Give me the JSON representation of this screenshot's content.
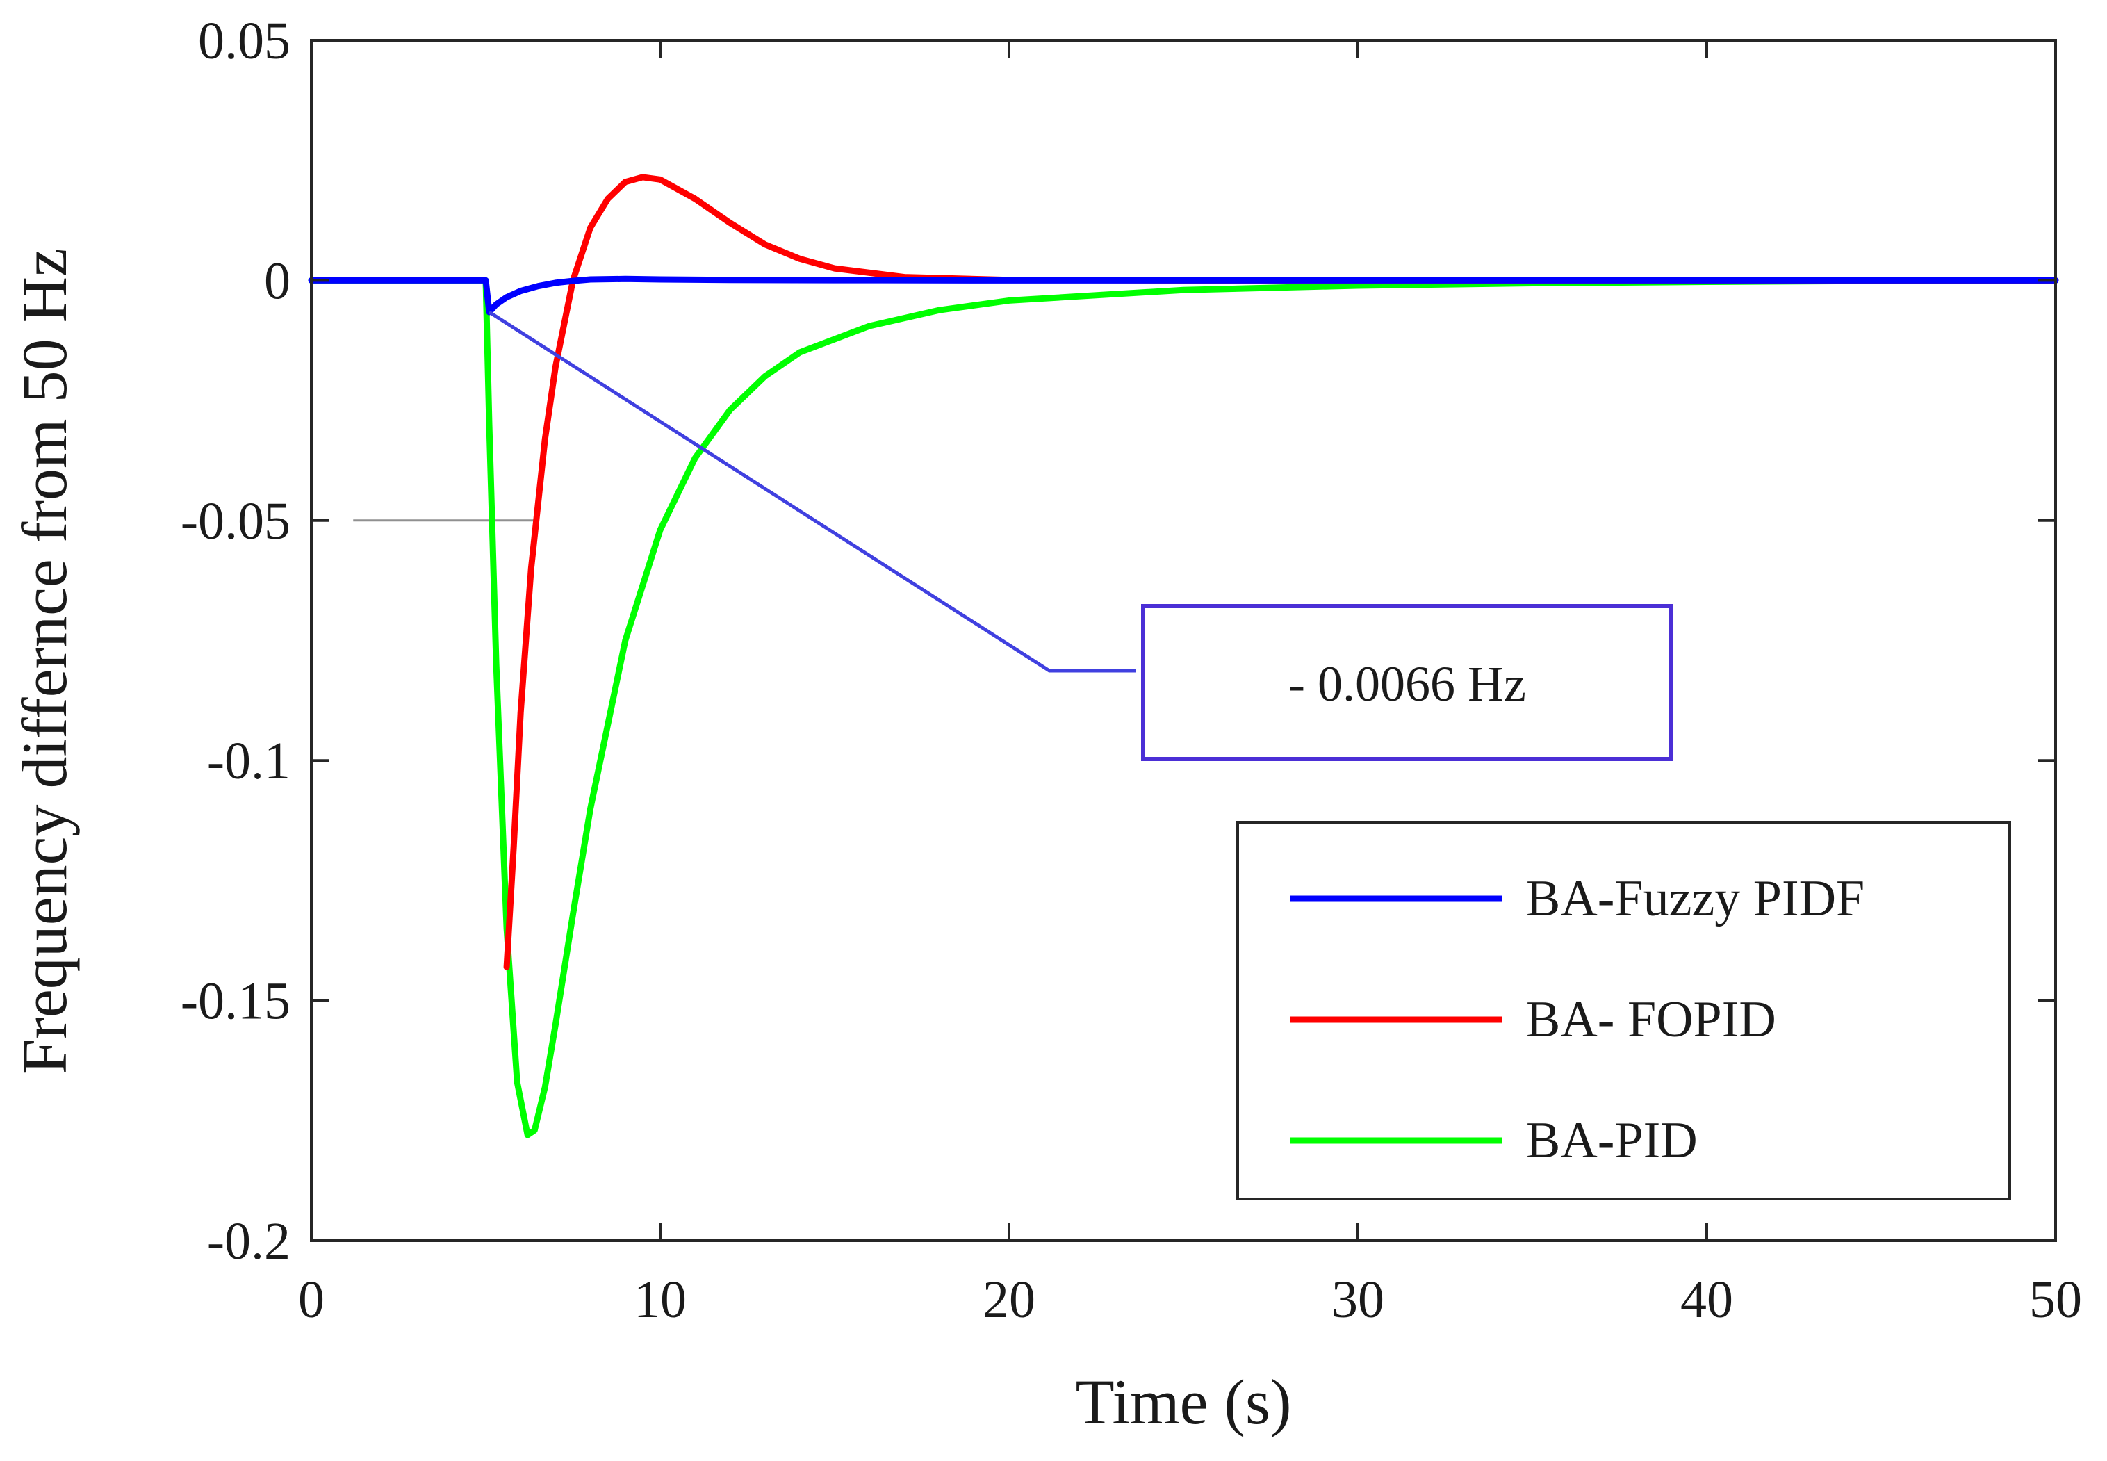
{
  "chart_data": {
    "type": "line",
    "title": "",
    "xlabel": "Time (s)",
    "ylabel": "Frequency differnce from 50 Hz",
    "xlim": [
      0,
      50
    ],
    "ylim": [
      -0.2,
      0.05
    ],
    "xticks": [
      0,
      10,
      20,
      30,
      40,
      50
    ],
    "xtick_labels": [
      "0",
      "10",
      "20",
      "30",
      "40",
      "50"
    ],
    "yticks": [
      0.05,
      0,
      -0.05,
      -0.1,
      -0.15,
      -0.2
    ],
    "ytick_labels": [
      "0.05",
      "0",
      "-0.05",
      "-0.1",
      "-0.15",
      "-0.2"
    ],
    "grid": false,
    "legend_position": "bottom-right",
    "series": [
      {
        "name": "BA-Fuzzy PIDF",
        "color": "#0000ff",
        "x": [
          0,
          5,
          5.1,
          5.3,
          5.6,
          6,
          6.5,
          7,
          7.5,
          8,
          9,
          10,
          12,
          15,
          20,
          30,
          40,
          50
        ],
        "y": [
          0,
          0,
          -0.0066,
          -0.005,
          -0.0035,
          -0.0022,
          -0.0012,
          -0.0005,
          -0.0001,
          0.0002,
          0.0003,
          0.0002,
          0.0001,
          5e-05,
          0,
          0,
          0,
          0
        ]
      },
      {
        "name": "BA- FOPID",
        "color": "#ff0000",
        "x": [
          5.6,
          5.8,
          6,
          6.3,
          6.7,
          7,
          7.5,
          8,
          8.5,
          9,
          9.5,
          10,
          11,
          12,
          13,
          14,
          15,
          17,
          20,
          25,
          30,
          40,
          50
        ],
        "y": [
          -0.143,
          -0.118,
          -0.09,
          -0.06,
          -0.033,
          -0.018,
          0,
          0.011,
          0.017,
          0.0205,
          0.0215,
          0.021,
          0.017,
          0.012,
          0.0075,
          0.0045,
          0.0025,
          0.0007,
          0.0001,
          0,
          0,
          0,
          0
        ]
      },
      {
        "name": "BA-PID",
        "color": "#00ff00",
        "x": [
          0,
          5,
          5.1,
          5.3,
          5.6,
          5.9,
          6.2,
          6.4,
          6.7,
          7,
          7.5,
          8,
          9,
          10,
          11,
          12,
          13,
          14,
          16,
          18,
          20,
          25,
          30,
          35,
          40,
          45,
          50
        ],
        "y": [
          0,
          0,
          -0.03,
          -0.08,
          -0.135,
          -0.167,
          -0.178,
          -0.177,
          -0.168,
          -0.155,
          -0.132,
          -0.11,
          -0.075,
          -0.052,
          -0.037,
          -0.027,
          -0.02,
          -0.015,
          -0.0095,
          -0.0062,
          -0.0042,
          -0.002,
          -0.0011,
          -0.0006,
          -0.0003,
          -0.0001,
          0
        ]
      }
    ],
    "annotations": [
      {
        "text": "- 0.0066 Hz",
        "target": [
          5.1,
          -0.0066
        ],
        "line_color": "#4040e0",
        "box_color": "#4b2fd6"
      }
    ],
    "reference_lines": [
      {
        "y": -0.05,
        "x_from": 1.2,
        "x_to": 6.5,
        "color": "#909090"
      }
    ]
  }
}
